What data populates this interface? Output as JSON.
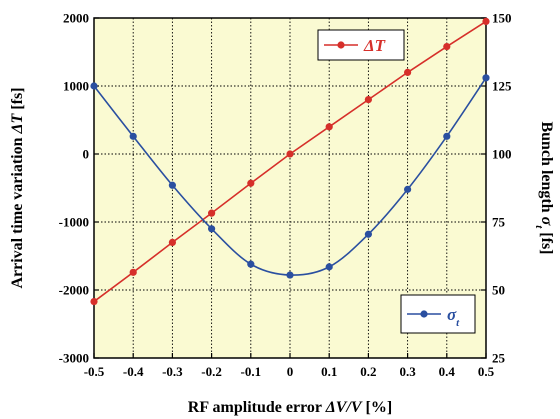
{
  "colors": {
    "plot_bg": "#fafad2",
    "arrival": "#d62f2a",
    "bunch": "#2a4fa0",
    "grid": "#000000"
  },
  "chart_data": {
    "type": "line",
    "xlabel": "RF amplitude error ΔV/V [%]",
    "ylabel_left": "Arrival time variation  ΔT [fs]",
    "ylabel_right": "Bunch length  σt [fs]",
    "xlim": [
      -0.5,
      0.5
    ],
    "ylim_left": [
      -3000,
      2000
    ],
    "ylim_right": [
      25,
      150
    ],
    "grid": true,
    "x_ticks": [
      "-0.5",
      "-0.4",
      "-0.3",
      "-0.2",
      "-0.1",
      "0",
      "0.1",
      "0.2",
      "0.3",
      "0.4",
      "0.5"
    ],
    "y_left_ticks": [
      "2000",
      "1000",
      "0",
      "-1000",
      "-2000",
      "-3000"
    ],
    "y_right_ticks": [
      "150",
      "125",
      "100",
      "75",
      "50",
      "25"
    ],
    "x": [
      -0.5,
      -0.4,
      -0.3,
      -0.2,
      -0.1,
      0,
      0.1,
      0.2,
      0.3,
      0.4,
      0.5
    ],
    "series": [
      {
        "name": "ΔT",
        "axis": "left",
        "values": [
          -2170,
          -1740,
          -1300,
          -870,
          -430,
          0,
          400,
          800,
          1200,
          1580,
          1950
        ]
      },
      {
        "name": "σt",
        "axis": "right",
        "values": [
          125,
          106.5,
          88.5,
          72.5,
          59.5,
          55.5,
          58.5,
          70.5,
          87,
          106.5,
          128
        ]
      }
    ]
  }
}
